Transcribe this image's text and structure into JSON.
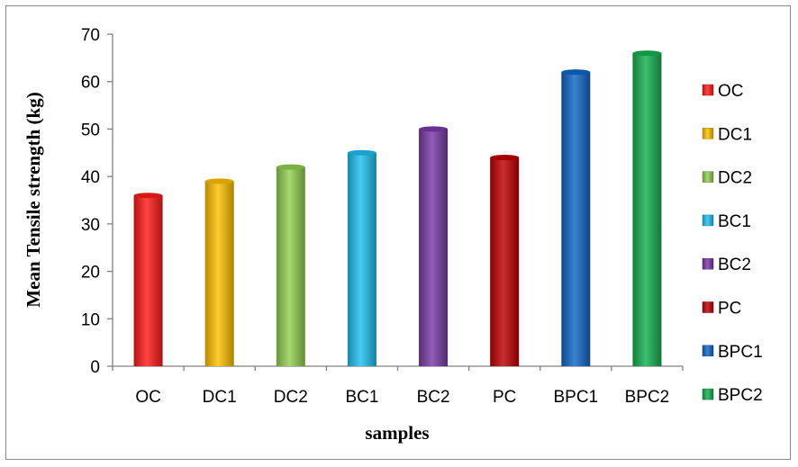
{
  "chart_data": {
    "type": "bar",
    "title": "",
    "xlabel": "samples",
    "ylabel": "Mean Tensile strength (kg)",
    "categories": [
      "OC",
      "DC1",
      "DC2",
      "BC1",
      "BC2",
      "PC",
      "BPC1",
      "BPC2"
    ],
    "values": [
      36,
      39,
      42,
      45,
      50,
      44,
      62,
      66
    ],
    "ylim": [
      0,
      70
    ],
    "yticks": [
      "0",
      "10",
      "20",
      "30",
      "40",
      "50",
      "60",
      "70"
    ],
    "grid": false,
    "legend": "right",
    "colors": [
      "#ff1a1a",
      "#ffc000",
      "#92d050",
      "#1fbff0",
      "#7a3aa8",
      "#c00000",
      "#1068c8",
      "#14b050"
    ],
    "legend_entries": [
      "OC",
      "DC1",
      "DC2",
      "BC1",
      "BC2",
      "PC",
      "BPC1",
      "BPC2"
    ]
  }
}
